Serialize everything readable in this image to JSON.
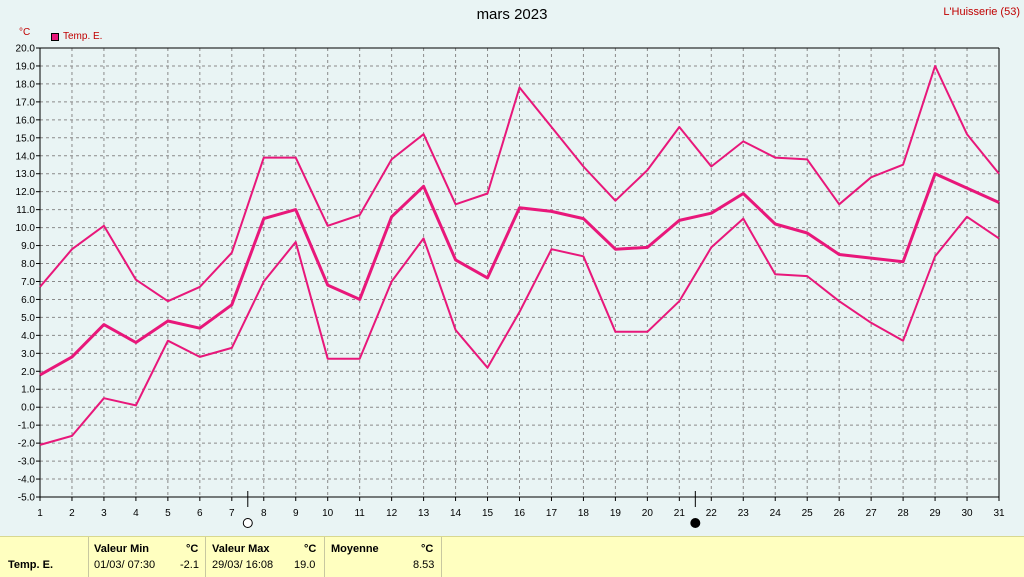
{
  "header": {
    "title": "mars 2023",
    "location": "L'Huisserie (53)",
    "unit": "°C",
    "legend": "Temp. E."
  },
  "chart_data": {
    "type": "line",
    "title": "mars 2023",
    "ylim": [
      -5,
      20
    ],
    "ytick_step": 1,
    "x": [
      1,
      2,
      3,
      4,
      5,
      6,
      7,
      8,
      9,
      10,
      11,
      12,
      13,
      14,
      15,
      16,
      17,
      18,
      19,
      20,
      21,
      22,
      23,
      24,
      25,
      26,
      27,
      28,
      29,
      30,
      31
    ],
    "grid": true,
    "legend_position": "top-left",
    "moon_phases": [
      {
        "day": 7.5,
        "phase": "full"
      },
      {
        "day": 21.5,
        "phase": "new"
      }
    ],
    "color": "#e8177a",
    "series": [
      {
        "name": "Temp. E.",
        "role": "max",
        "values": [
          6.7,
          8.8,
          10.1,
          7.1,
          5.9,
          6.7,
          8.6,
          13.9,
          13.9,
          10.1,
          10.7,
          13.8,
          15.2,
          11.3,
          11.9,
          17.8,
          15.6,
          13.4,
          11.5,
          13.2,
          15.6,
          13.4,
          14.8,
          13.9,
          13.8,
          11.3,
          12.8,
          13.5,
          19.0,
          15.2,
          13.0
        ]
      },
      {
        "name": "Temp. E.",
        "role": "mean",
        "values": [
          1.8,
          2.8,
          4.6,
          3.6,
          4.8,
          4.4,
          5.7,
          10.5,
          11.0,
          6.8,
          6.0,
          10.6,
          12.3,
          8.2,
          7.2,
          11.1,
          10.9,
          10.5,
          8.8,
          8.9,
          10.4,
          10.8,
          11.9,
          10.2,
          9.7,
          8.5,
          8.3,
          8.1,
          13.0,
          12.2,
          11.4
        ]
      },
      {
        "name": "Temp. E.",
        "role": "min",
        "values": [
          -2.1,
          -1.6,
          0.5,
          0.1,
          3.7,
          2.8,
          3.3,
          7.0,
          9.2,
          2.7,
          2.7,
          7.0,
          9.4,
          4.3,
          2.2,
          5.3,
          8.8,
          8.4,
          4.2,
          4.2,
          5.9,
          8.9,
          10.5,
          7.4,
          7.3,
          5.9,
          4.7,
          3.7,
          8.4,
          10.6,
          9.4
        ]
      }
    ]
  },
  "stats": {
    "series_label": "Temp. E.",
    "min": {
      "label": "Valeur Min",
      "unit": "°C",
      "datetime": "01/03/  07:30",
      "value": "-2.1"
    },
    "max": {
      "label": "Valeur Max",
      "unit": "°C",
      "datetime": "29/03/  16:08",
      "value": "19.0"
    },
    "mean": {
      "label": "Moyenne",
      "unit": "°C",
      "value": "8.53"
    }
  }
}
